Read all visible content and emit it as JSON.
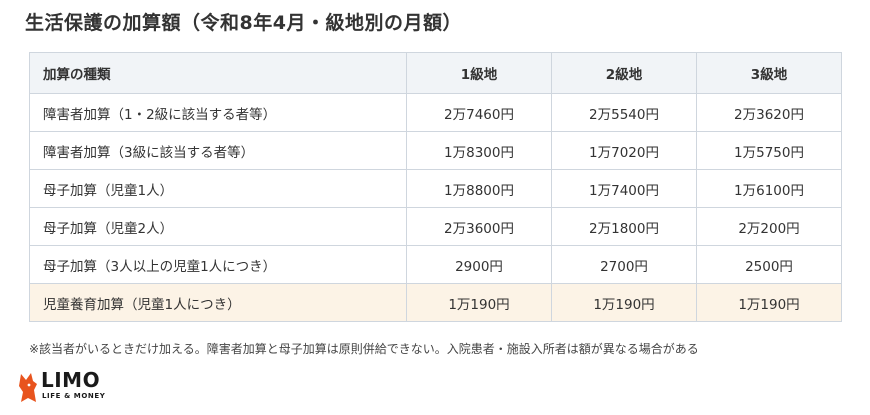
{
  "title": "生活保護の加算額（令和8年4月・級地別の月額）",
  "table": {
    "headers": [
      "加算の種類",
      "1級地",
      "2級地",
      "3級地"
    ],
    "rows": [
      {
        "type": "障害者加算（1・2級に該当する者等）",
        "v1": "2万7460円",
        "v2": "2万5540円",
        "v3": "2万3620円"
      },
      {
        "type": "障害者加算（3級に該当する者等）",
        "v1": "1万8300円",
        "v2": "1万7020円",
        "v3": "1万5750円"
      },
      {
        "type": "母子加算（児童1人）",
        "v1": "1万8800円",
        "v2": "1万7400円",
        "v3": "1万6100円"
      },
      {
        "type": "母子加算（児童2人）",
        "v1": "2万3600円",
        "v2": "2万1800円",
        "v3": "2万200円"
      },
      {
        "type": "母子加算（3人以上の児童1人につき）",
        "v1": "2900円",
        "v2": "2700円",
        "v3": "2500円"
      },
      {
        "type": "児童養育加算（児童1人につき）",
        "v1": "1万190円",
        "v2": "1万190円",
        "v3": "1万190円"
      }
    ]
  },
  "note": "※該当者がいるときだけ加える。障害者加算と母子加算は原則併給できない。入院患者・施設入所者は額が異なる場合がある",
  "logo": {
    "name": "LIMO",
    "sub": "LIFE & MONEY"
  },
  "colors": {
    "header_bg": "#f1f4f7",
    "highlight_bg": "#fcf3e6",
    "border": "#cfd6de",
    "logo_accent": "#e8541e"
  }
}
